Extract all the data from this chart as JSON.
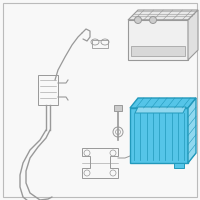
{
  "bg_color": "#f8f8f8",
  "border_color": "#bbbbbb",
  "line_color": "#999999",
  "tray_fill": "#55c5e8",
  "tray_stroke": "#2299bb",
  "tray_inner": "#90d8ef",
  "figsize": [
    2.0,
    2.0
  ],
  "dpi": 100
}
